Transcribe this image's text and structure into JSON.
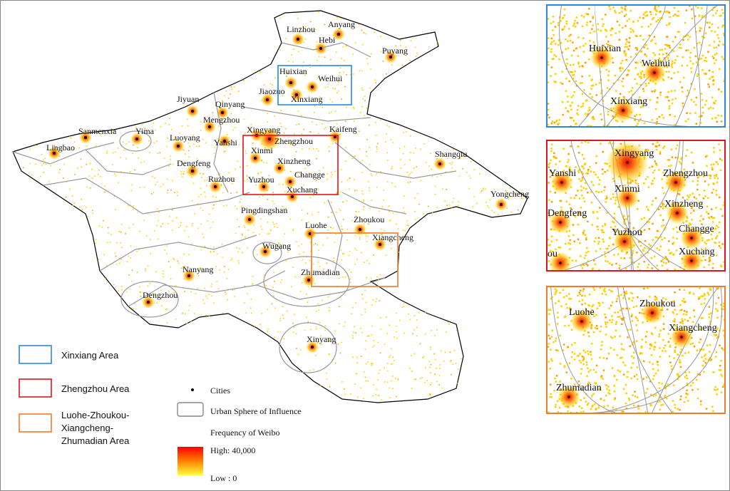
{
  "map": {
    "cities": [
      "Linzhou",
      "Anyang",
      "Hebi",
      "Puyang",
      "Huixian",
      "Weihui",
      "Xinxiang",
      "Jiaozuo",
      "Jiyuan",
      "Qinyang",
      "Mengzhou",
      "Sanmenxia",
      "Yima",
      "Lingbao",
      "Luoyang",
      "Yanshi",
      "Xingyang",
      "Zhengzhou",
      "Kaifeng",
      "Xinmi",
      "Xinzheng",
      "Dengfeng",
      "Ruzhou",
      "Yuzhou",
      "Changge",
      "Xuchang",
      "Shangqiu",
      "Yongcheng",
      "Pingdingshan",
      "Luohe",
      "Zhoukou",
      "Xiangcheng",
      "Wugang",
      "Zhumadian",
      "Nanyang",
      "Dengzhou",
      "Xinyang"
    ]
  },
  "insets": [
    {
      "labels": [
        "Huixian",
        "Weihui",
        "Xinxiang"
      ]
    },
    {
      "labels": [
        "Xingyang",
        "Yanshi",
        "Zhengzhou",
        "Xinmi",
        "Dengfeng",
        "Xinzheng",
        "Yuzhou",
        "Changge",
        "Xuchang",
        "ou"
      ]
    },
    {
      "labels": [
        "Luohe",
        "Zhoukou",
        "Xiangcheng",
        "Zhumadian"
      ]
    }
  ],
  "legend": {
    "areas": [
      {
        "lines": [
          "Xinxiang Area"
        ]
      },
      {
        "lines": [
          "Zhengzhou Area"
        ]
      },
      {
        "lines": [
          "Luohe-Zhoukou-",
          "Xiangcheng-",
          "Zhumadian Area"
        ]
      }
    ],
    "cities": "Cities",
    "sphere": "Urban Sphere of Influence",
    "frequency": "Frequency of Weibo",
    "high": "High: 40,000",
    "low": "Low : 0"
  }
}
